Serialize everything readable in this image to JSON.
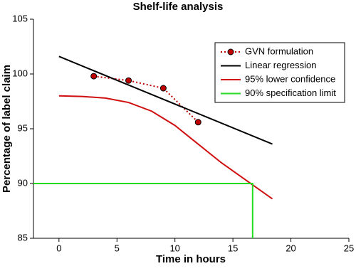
{
  "chart_data": {
    "type": "line",
    "title": "Shelf-life analysis",
    "x_label": "Time in hours",
    "y_label": "Percentage of label claim",
    "xlim": [
      -2.2,
      25
    ],
    "xticks": [
      0,
      5,
      10,
      15,
      20,
      25
    ],
    "ylim": [
      85,
      105
    ],
    "yticks": [
      85,
      90,
      95,
      100,
      105
    ],
    "legend": "upper right",
    "series": [
      {
        "name": "GVN formulation",
        "color": "#c00000",
        "linestyle": "dotted",
        "marker": "circle",
        "x": [
          3,
          6,
          9,
          12
        ],
        "values": [
          99.8,
          99.4,
          98.7,
          95.6
        ]
      },
      {
        "name": "Linear regression",
        "color": "#000000",
        "linestyle": "solid",
        "x": [
          0,
          18.4
        ],
        "values": [
          101.6,
          93.6
        ]
      },
      {
        "name": "95% lower confidence",
        "color": "#d01010",
        "linestyle": "solid",
        "x": [
          0,
          2,
          4,
          6,
          8,
          10,
          12,
          14,
          16,
          18.4
        ],
        "values": [
          98.0,
          97.95,
          97.8,
          97.4,
          96.6,
          95.3,
          93.6,
          91.9,
          90.4,
          88.6
        ]
      },
      {
        "name": "90% specification limit",
        "color": "#22dd22",
        "linestyle": "solid",
        "x": [
          -2.2,
          16.7,
          16.7
        ],
        "values": [
          90,
          90,
          85
        ]
      }
    ]
  }
}
